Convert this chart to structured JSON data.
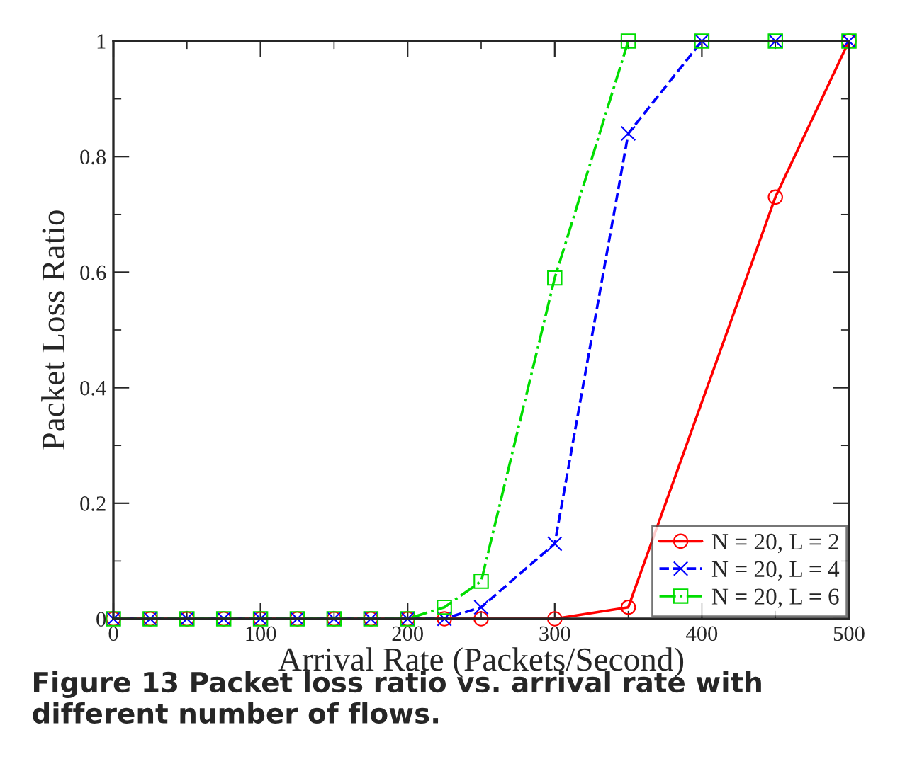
{
  "chart_data": {
    "type": "line",
    "xlabel": "Arrival Rate (Packets/Second)",
    "ylabel": "Packet Loss Ratio",
    "x": [
      0,
      25,
      50,
      75,
      100,
      125,
      150,
      175,
      200,
      225,
      250,
      300,
      350,
      400,
      450,
      500
    ],
    "series": [
      {
        "name": "N = 20, L = 2",
        "color": "#ff0000",
        "marker": "circle",
        "line_style": "solid",
        "values": [
          0,
          0,
          0,
          0,
          0,
          0,
          0,
          0,
          0,
          0,
          0,
          0,
          0.02,
          null,
          0.73,
          1
        ]
      },
      {
        "name": "N = 20, L = 4",
        "color": "#0000ff",
        "marker": "cross",
        "line_style": "dashed",
        "values": [
          0,
          0,
          0,
          0,
          0,
          0,
          0,
          0,
          0,
          0,
          0.02,
          0.13,
          0.84,
          1,
          1,
          1
        ]
      },
      {
        "name": "N = 20, L = 6",
        "color": "#00dd00",
        "marker": "square",
        "line_style": "dashdot",
        "values": [
          0,
          0,
          0,
          0,
          0,
          0,
          0,
          0,
          0,
          0.02,
          0.065,
          0.59,
          1,
          1,
          1,
          1
        ]
      }
    ],
    "xlim": [
      0,
      500
    ],
    "xticks": [
      0,
      100,
      200,
      300,
      400,
      500
    ],
    "ylim": [
      0,
      1
    ],
    "yticks": [
      0,
      0.2,
      0.4,
      0.6,
      0.8,
      1
    ],
    "grid": false,
    "legend": "bottom right",
    "annotations": [
      "Figure 13 Packet loss ratio vs. arrival rate with different number of flows."
    ]
  }
}
